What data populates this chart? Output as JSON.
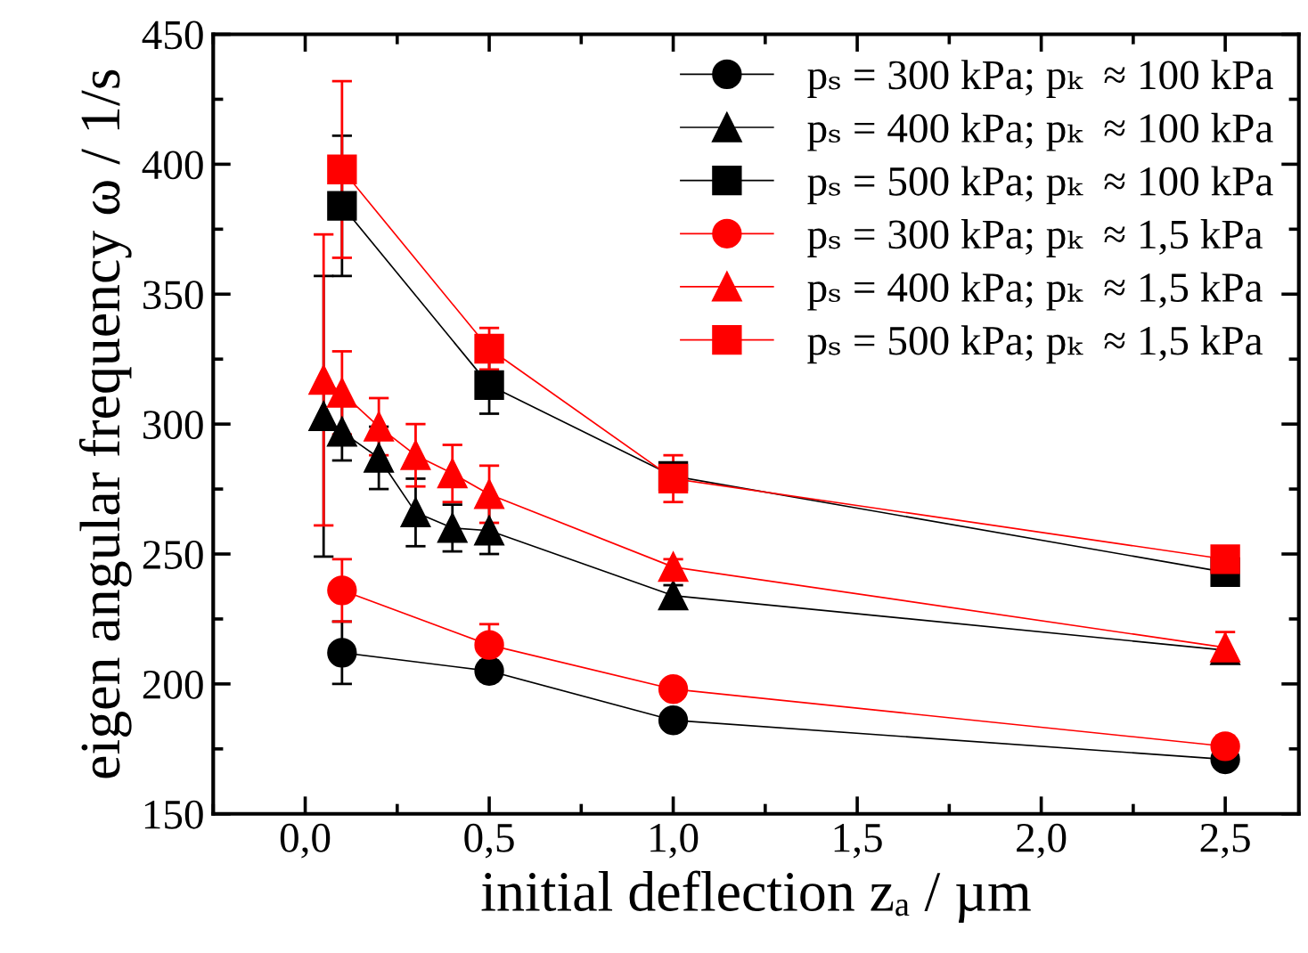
{
  "chart_data": {
    "type": "line",
    "xlabel": "initial deflection zₐ / µm",
    "ylabel": "eigen angular frequency ω / 1/s",
    "xlim": [
      -0.25,
      2.7
    ],
    "xticks": [
      {
        "value": 0,
        "label": "0,0"
      },
      {
        "value": 0.5,
        "label": "0,5"
      },
      {
        "value": 1,
        "label": "1,0"
      },
      {
        "value": 1.5,
        "label": "1,5"
      },
      {
        "value": 2,
        "label": "2,0"
      },
      {
        "value": 2.5,
        "label": "2,5"
      }
    ],
    "ylim": [
      150,
      450
    ],
    "yticks": [
      150,
      200,
      250,
      300,
      350,
      400,
      450
    ],
    "grid": false,
    "legend": "top right",
    "line_style": "solid",
    "series": [
      {
        "name": "pₛ = 300 kPa; pₖ  ≈ 100 kPa",
        "color": "#000000",
        "marker": "circle",
        "x": [
          0.1,
          0.5,
          1.0,
          2.5
        ],
        "values": [
          212,
          205,
          186,
          171
        ],
        "errors": [
          12,
          4,
          2,
          2
        ]
      },
      {
        "name": "pₛ = 400 kPa; pₖ  ≈ 100 kPa",
        "color": "#000000",
        "marker": "triangle",
        "x": [
          0.05,
          0.1,
          0.2,
          0.3,
          0.4,
          0.5,
          1.0,
          2.5
        ],
        "values": [
          303,
          297,
          287,
          266,
          260,
          259,
          234,
          213
        ],
        "errors": [
          54,
          11,
          12,
          13,
          9,
          9,
          4,
          null
        ]
      },
      {
        "name": "pₛ = 500 kPa; pₖ  ≈ 100 kPa",
        "color": "#000000",
        "marker": "square",
        "x": [
          0.1,
          0.5,
          1.0,
          2.5
        ],
        "values": [
          384,
          315,
          280,
          243
        ],
        "errors": [
          27,
          11,
          5,
          2
        ]
      },
      {
        "name": "pₛ = 300 kPa; pₖ  ≈ 1,5 kPa",
        "color": "#ff0000",
        "marker": "circle",
        "x": [
          0.1,
          0.5,
          1.0,
          2.5
        ],
        "values": [
          236,
          215,
          198,
          176
        ],
        "errors": [
          12,
          8,
          3,
          4
        ]
      },
      {
        "name": "pₛ = 400 kPa; pₖ  ≈ 1,5 kPa",
        "color": "#ff0000",
        "marker": "triangle",
        "x": [
          0.05,
          0.1,
          0.2,
          0.3,
          0.4,
          0.5,
          1.0,
          2.5
        ],
        "values": [
          317,
          312,
          299,
          288,
          281,
          273,
          245,
          214
        ],
        "errors": [
          56,
          16,
          11,
          12,
          11,
          11,
          3,
          6
        ]
      },
      {
        "name": "pₛ = 500 kPa; pₖ  ≈ 1,5 kPa",
        "color": "#ff0000",
        "marker": "square",
        "x": [
          0.1,
          0.5,
          1.0,
          2.5
        ],
        "values": [
          398,
          329,
          279,
          248
        ],
        "errors": [
          34,
          8,
          9,
          2
        ]
      }
    ]
  }
}
